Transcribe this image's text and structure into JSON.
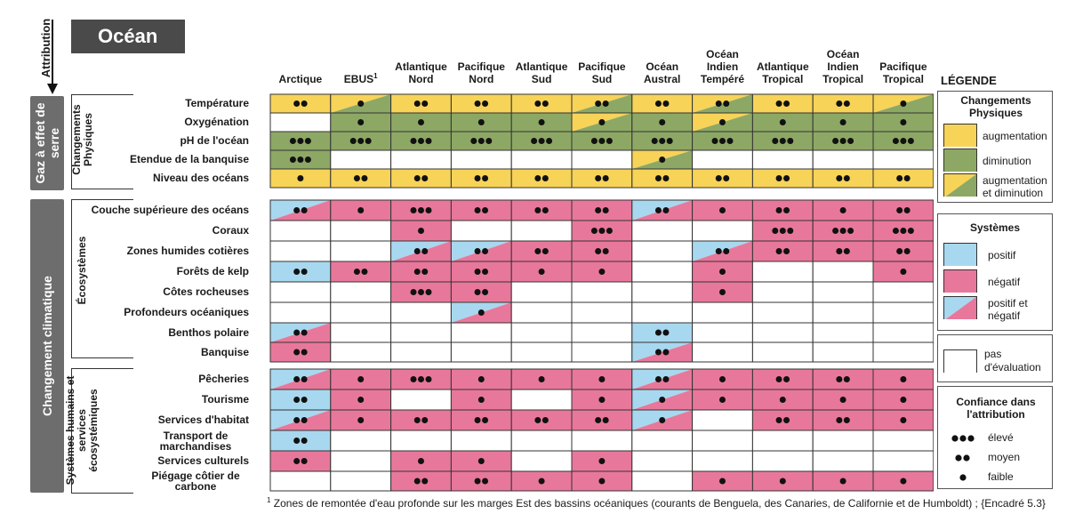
{
  "title": "Océan",
  "attribution_label": "Attribution",
  "drivers": [
    {
      "id": "ghg",
      "label": "Gaz à effet de serre"
    },
    {
      "id": "cc",
      "label": "Changement climatique"
    }
  ],
  "groups": [
    {
      "id": "phys",
      "label": "Changements Physiques"
    },
    {
      "id": "eco",
      "label": "Écosystèmes"
    },
    {
      "id": "hum",
      "label": "Systèmes humains et services écosystémiques"
    }
  ],
  "columns": [
    {
      "label": "Arctique"
    },
    {
      "label": "EBUS",
      "sup": "1"
    },
    {
      "label": "Atlantique Nord"
    },
    {
      "label": "Pacifique Nord"
    },
    {
      "label": "Atlantique Sud"
    },
    {
      "label": "Pacifique Sud"
    },
    {
      "label": "Océan Austral"
    },
    {
      "label": "Océan Indien Tempéré"
    },
    {
      "label": "Atlantique Tropical"
    },
    {
      "label": "Océan Indien Tropical"
    },
    {
      "label": "Pacifique Tropical"
    }
  ],
  "colors": {
    "Y": "#f7d358",
    "G": "#8da865",
    "B": "#a8d8ef",
    "P": "#e8789b",
    "W": "#ffffff",
    "title_bg": "#4a4a4a",
    "driver_bg": "#6d6d6d"
  },
  "cell_codes": {
    "Y": "augmentation",
    "G": "diminution",
    "YG": "augmentation et diminution",
    "B": "positif",
    "P": "négatif",
    "BP": "positif et négatif",
    "W": "pas d'évaluation"
  },
  "rows": [
    {
      "group": "phys",
      "label": "Température",
      "cells": [
        [
          "Y",
          2
        ],
        [
          "YG",
          1
        ],
        [
          "Y",
          2
        ],
        [
          "Y",
          2
        ],
        [
          "Y",
          2
        ],
        [
          "YG",
          2
        ],
        [
          "Y",
          2
        ],
        [
          "YG",
          2
        ],
        [
          "Y",
          2
        ],
        [
          "Y",
          2
        ],
        [
          "YG",
          1
        ]
      ]
    },
    {
      "group": "phys",
      "label": "Oxygénation",
      "cells": [
        [
          "W",
          0
        ],
        [
          "G",
          1
        ],
        [
          "G",
          1
        ],
        [
          "G",
          1
        ],
        [
          "G",
          1
        ],
        [
          "YG",
          1
        ],
        [
          "G",
          1
        ],
        [
          "YG",
          1
        ],
        [
          "G",
          1
        ],
        [
          "G",
          1
        ],
        [
          "G",
          1
        ]
      ]
    },
    {
      "group": "phys",
      "label": "pH de l'océan",
      "cells": [
        [
          "G",
          3
        ],
        [
          "G",
          3
        ],
        [
          "G",
          3
        ],
        [
          "G",
          3
        ],
        [
          "G",
          3
        ],
        [
          "G",
          3
        ],
        [
          "G",
          3
        ],
        [
          "G",
          3
        ],
        [
          "G",
          3
        ],
        [
          "G",
          3
        ],
        [
          "G",
          3
        ]
      ]
    },
    {
      "group": "phys",
      "label": "Etendue de la banquise",
      "cells": [
        [
          "G",
          3
        ],
        [
          "W",
          0
        ],
        [
          "W",
          0
        ],
        [
          "W",
          0
        ],
        [
          "W",
          0
        ],
        [
          "W",
          0
        ],
        [
          "YG",
          1
        ],
        [
          "W",
          0
        ],
        [
          "W",
          0
        ],
        [
          "W",
          0
        ],
        [
          "W",
          0
        ]
      ]
    },
    {
      "group": "phys",
      "label": "Niveau des océans",
      "cells": [
        [
          "Y",
          1
        ],
        [
          "Y",
          2
        ],
        [
          "Y",
          2
        ],
        [
          "Y",
          2
        ],
        [
          "Y",
          2
        ],
        [
          "Y",
          2
        ],
        [
          "Y",
          2
        ],
        [
          "Y",
          2
        ],
        [
          "Y",
          2
        ],
        [
          "Y",
          2
        ],
        [
          "Y",
          2
        ]
      ]
    },
    {
      "group": "eco",
      "label": "Couche supérieure des océans",
      "cells": [
        [
          "BP",
          2
        ],
        [
          "P",
          1
        ],
        [
          "P",
          3
        ],
        [
          "P",
          2
        ],
        [
          "P",
          2
        ],
        [
          "P",
          2
        ],
        [
          "BP",
          2
        ],
        [
          "P",
          1
        ],
        [
          "P",
          2
        ],
        [
          "P",
          1
        ],
        [
          "P",
          2
        ]
      ]
    },
    {
      "group": "eco",
      "label": "Coraux",
      "cells": [
        [
          "W",
          0
        ],
        [
          "W",
          0
        ],
        [
          "P",
          1
        ],
        [
          "W",
          0
        ],
        [
          "W",
          0
        ],
        [
          "P",
          3
        ],
        [
          "W",
          0
        ],
        [
          "W",
          0
        ],
        [
          "P",
          3
        ],
        [
          "P",
          3
        ],
        [
          "P",
          3
        ]
      ]
    },
    {
      "group": "eco",
      "label": "Zones humides cotières",
      "cells": [
        [
          "W",
          0
        ],
        [
          "W",
          0
        ],
        [
          "BP",
          2
        ],
        [
          "BP",
          2
        ],
        [
          "P",
          2
        ],
        [
          "P",
          2
        ],
        [
          "W",
          0
        ],
        [
          "BP",
          2
        ],
        [
          "P",
          2
        ],
        [
          "P",
          2
        ],
        [
          "P",
          2
        ]
      ]
    },
    {
      "group": "eco",
      "label": "Forêts de kelp",
      "cells": [
        [
          "B",
          2
        ],
        [
          "P",
          2
        ],
        [
          "P",
          2
        ],
        [
          "P",
          2
        ],
        [
          "P",
          1
        ],
        [
          "P",
          1
        ],
        [
          "W",
          0
        ],
        [
          "P",
          1
        ],
        [
          "W",
          0
        ],
        [
          "W",
          0
        ],
        [
          "P",
          1
        ]
      ]
    },
    {
      "group": "eco",
      "label": "Côtes rocheuses",
      "cells": [
        [
          "W",
          0
        ],
        [
          "W",
          0
        ],
        [
          "P",
          3
        ],
        [
          "P",
          2
        ],
        [
          "W",
          0
        ],
        [
          "W",
          0
        ],
        [
          "W",
          0
        ],
        [
          "P",
          1
        ],
        [
          "W",
          0
        ],
        [
          "W",
          0
        ],
        [
          "W",
          0
        ]
      ]
    },
    {
      "group": "eco",
      "label": "Profondeurs océaniques",
      "cells": [
        [
          "W",
          0
        ],
        [
          "W",
          0
        ],
        [
          "W",
          0
        ],
        [
          "BP",
          1
        ],
        [
          "W",
          0
        ],
        [
          "W",
          0
        ],
        [
          "W",
          0
        ],
        [
          "W",
          0
        ],
        [
          "W",
          0
        ],
        [
          "W",
          0
        ],
        [
          "W",
          0
        ]
      ]
    },
    {
      "group": "eco",
      "label": "Benthos polaire",
      "cells": [
        [
          "BP",
          2
        ],
        [
          "W",
          0
        ],
        [
          "W",
          0
        ],
        [
          "W",
          0
        ],
        [
          "W",
          0
        ],
        [
          "W",
          0
        ],
        [
          "B",
          2
        ],
        [
          "W",
          0
        ],
        [
          "W",
          0
        ],
        [
          "W",
          0
        ],
        [
          "W",
          0
        ]
      ]
    },
    {
      "group": "eco",
      "label": "Banquise",
      "cells": [
        [
          "P",
          2
        ],
        [
          "W",
          0
        ],
        [
          "W",
          0
        ],
        [
          "W",
          0
        ],
        [
          "W",
          0
        ],
        [
          "W",
          0
        ],
        [
          "BP",
          2
        ],
        [
          "W",
          0
        ],
        [
          "W",
          0
        ],
        [
          "W",
          0
        ],
        [
          "W",
          0
        ]
      ]
    },
    {
      "group": "hum",
      "label": "Pêcheries",
      "cells": [
        [
          "BP",
          2
        ],
        [
          "P",
          1
        ],
        [
          "P",
          3
        ],
        [
          "P",
          1
        ],
        [
          "P",
          1
        ],
        [
          "P",
          1
        ],
        [
          "BP",
          2
        ],
        [
          "P",
          1
        ],
        [
          "P",
          2
        ],
        [
          "P",
          2
        ],
        [
          "P",
          1
        ]
      ]
    },
    {
      "group": "hum",
      "label": "Tourisme",
      "cells": [
        [
          "B",
          2
        ],
        [
          "P",
          1
        ],
        [
          "W",
          0
        ],
        [
          "P",
          1
        ],
        [
          "W",
          0
        ],
        [
          "P",
          1
        ],
        [
          "BP",
          1
        ],
        [
          "P",
          1
        ],
        [
          "P",
          1
        ],
        [
          "P",
          1
        ],
        [
          "P",
          1
        ]
      ]
    },
    {
      "group": "hum",
      "label": "Services d'habitat",
      "cells": [
        [
          "BP",
          2
        ],
        [
          "P",
          1
        ],
        [
          "P",
          2
        ],
        [
          "P",
          2
        ],
        [
          "P",
          2
        ],
        [
          "P",
          2
        ],
        [
          "BP",
          1
        ],
        [
          "W",
          0
        ],
        [
          "P",
          2
        ],
        [
          "P",
          2
        ],
        [
          "P",
          1
        ]
      ]
    },
    {
      "group": "hum",
      "label": "Transport de marchandises",
      "cells": [
        [
          "B",
          2
        ],
        [
          "W",
          0
        ],
        [
          "W",
          0
        ],
        [
          "W",
          0
        ],
        [
          "W",
          0
        ],
        [
          "W",
          0
        ],
        [
          "W",
          0
        ],
        [
          "W",
          0
        ],
        [
          "W",
          0
        ],
        [
          "W",
          0
        ],
        [
          "W",
          0
        ]
      ]
    },
    {
      "group": "hum",
      "label": "Services culturels",
      "cells": [
        [
          "P",
          2
        ],
        [
          "W",
          0
        ],
        [
          "P",
          1
        ],
        [
          "P",
          1
        ],
        [
          "W",
          0
        ],
        [
          "P",
          1
        ],
        [
          "W",
          0
        ],
        [
          "W",
          0
        ],
        [
          "W",
          0
        ],
        [
          "W",
          0
        ],
        [
          "W",
          0
        ]
      ]
    },
    {
      "group": "hum",
      "label": "Piégage côtier de carbone",
      "cells": [
        [
          "W",
          0
        ],
        [
          "W",
          0
        ],
        [
          "P",
          2
        ],
        [
          "P",
          2
        ],
        [
          "P",
          1
        ],
        [
          "P",
          1
        ],
        [
          "W",
          0
        ],
        [
          "P",
          1
        ],
        [
          "P",
          1
        ],
        [
          "P",
          1
        ],
        [
          "P",
          1
        ]
      ]
    }
  ],
  "legend": {
    "title": "LÉGENDE",
    "physical": {
      "title": "Changements Physiques",
      "items": [
        "augmentation",
        "diminution",
        "augmentation et diminution"
      ]
    },
    "systems": {
      "title": "Systèmes",
      "items": [
        "positif",
        "négatif",
        "positif et négatif"
      ]
    },
    "none": {
      "label": "pas d'évaluation"
    },
    "confidence": {
      "title": "Confiance dans l'attribution",
      "items": [
        {
          "dots": 3,
          "label": "élevé"
        },
        {
          "dots": 2,
          "label": "moyen"
        },
        {
          "dots": 1,
          "label": "faible"
        }
      ]
    }
  },
  "footnote": {
    "sup": "1",
    "text": "Zones de remontée d'eau profonde sur les marges Est des bassins océaniques (courants de Benguela, des Canaries, de Californie et de Humboldt) ; {Encadré 5.3}"
  }
}
